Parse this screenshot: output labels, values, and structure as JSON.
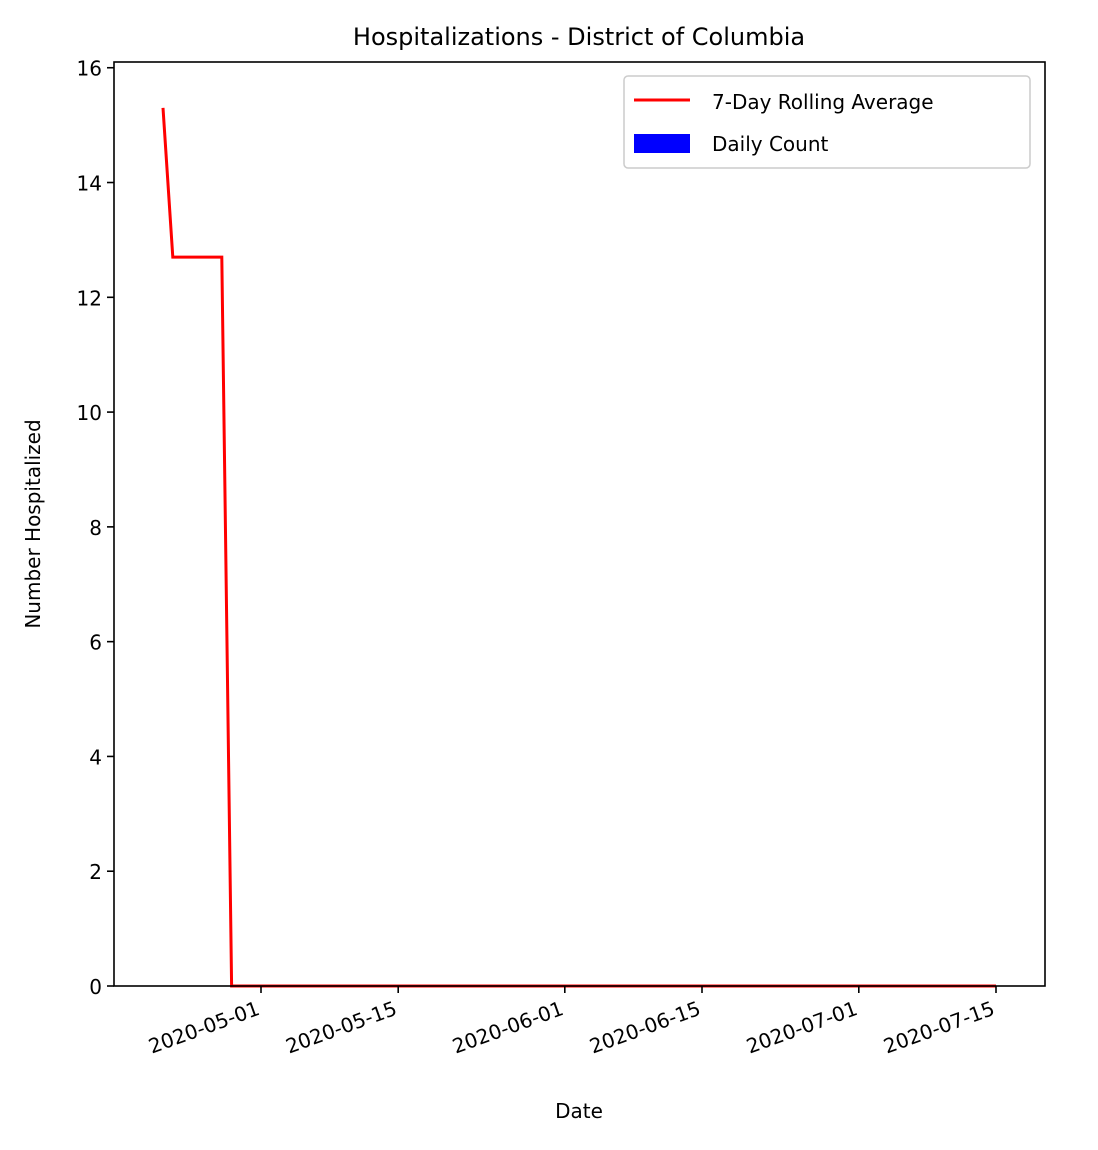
{
  "chart_data": {
    "type": "line",
    "title": "Hospitalizations - District of Columbia",
    "xlabel": "Date",
    "ylabel": "Number Hospitalized",
    "x_ticks": [
      "2020-05-01",
      "2020-05-15",
      "2020-06-01",
      "2020-06-15",
      "2020-07-01",
      "2020-07-15"
    ],
    "y_ticks": [
      0,
      2,
      4,
      6,
      8,
      10,
      12,
      14,
      16
    ],
    "xlim": [
      "2020-04-16",
      "2020-07-20"
    ],
    "ylim": [
      0,
      16.1
    ],
    "grid": false,
    "legend_position": "top-right",
    "series": [
      {
        "name": "7-Day Rolling Average",
        "kind": "line",
        "color": "#ff0000",
        "x": [
          "2020-04-21",
          "2020-04-22",
          "2020-04-27",
          "2020-04-28",
          "2020-07-15"
        ],
        "values": [
          15.3,
          12.7,
          12.7,
          0,
          0
        ]
      },
      {
        "name": "Daily Count",
        "kind": "bar",
        "color": "#0000ff",
        "x": [],
        "values": []
      }
    ]
  }
}
